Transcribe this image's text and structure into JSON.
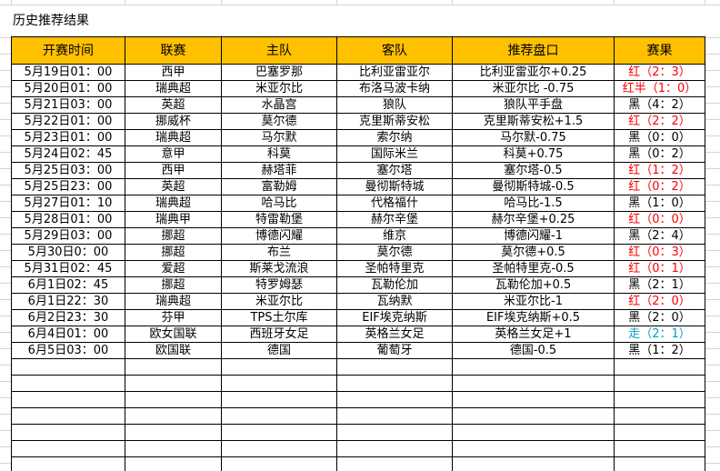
{
  "title": "历史推荐结果",
  "table": {
    "headers": [
      "开赛时间",
      "联赛",
      "主队",
      "客队",
      "推荐盘口",
      "赛果"
    ],
    "header_color": "#ffc000",
    "rows": [
      [
        "5月19日01：00",
        "西甲",
        "巴塞罗那",
        "比利亚雷亚尔",
        "比利亚雷亚尔+0.25",
        "红（2：3）"
      ],
      [
        "5月20日01：00",
        "瑞典超",
        "米亚尔比",
        "布洛马波卡纳",
        "米亚尔比 -0.75",
        "红半（1：0）"
      ],
      [
        "5月21日03：00",
        "英超",
        "水晶宫",
        "狼队",
        "狼队平手盘",
        "黑（4：2）"
      ],
      [
        "5月22日01：00",
        "挪威杯",
        "莫尔德",
        "克里斯蒂安松",
        "克里斯蒂安松+1.5",
        "红（2：2）"
      ],
      [
        "5月23日01：00",
        "瑞典超",
        "马尔默",
        "索尔纳",
        "马尔默-0.75",
        "黑（0：0）"
      ],
      [
        "5月24日02：45",
        "意甲",
        "科莫",
        "国际米兰",
        "科莫+0.75",
        "黑（0：2）"
      ],
      [
        "5月25日03：00",
        "西甲",
        "赫塔菲",
        "塞尔塔",
        "塞尔塔-0.5",
        "红（1：2）"
      ],
      [
        "5月25日23：00",
        "英超",
        "富勒姆",
        "曼彻斯特城",
        "曼彻斯特城-0.5",
        "红（0：2）"
      ],
      [
        "5月27日01：10",
        "瑞典超",
        "哈马比",
        "代格福什",
        "哈马比-1.5",
        "黑（1：0）"
      ],
      [
        "5月28日01：00",
        "瑞典甲",
        "特雷勒堡",
        "赫尔辛堡",
        "赫尔辛堡+0.25",
        "红（0：0）"
      ],
      [
        "5月29日03：00",
        "挪超",
        "博德闪耀",
        "维京",
        "博德闪耀-1",
        "黑（2：4）"
      ],
      [
        "5月30日0：00",
        "挪超",
        "布兰",
        "莫尔德",
        "莫尔德+0.5",
        "红（0：3）"
      ],
      [
        "5月31日02：45",
        "爱超",
        "斯莱戈流浪",
        "圣帕特里克",
        "圣帕特里克-0.5",
        "红（0：1）"
      ],
      [
        "6月1日02：45",
        "挪超",
        "特罗姆瑟",
        "瓦勒伦加",
        "瓦勒伦加+0.5",
        "黑（2：1）"
      ],
      [
        "6月1日22：30",
        "瑞典超",
        "米亚尔比",
        "瓦纳默",
        "米亚尔比-1",
        "红（2：0）"
      ],
      [
        "6月2日23：30",
        "芬甲",
        "TPS土尔库",
        "EIF埃克纳斯",
        "EIF埃克纳斯+0.5",
        "黑（2：0）"
      ],
      [
        "6月4日01：00",
        "欧女国联",
        "西班牙女足",
        "英格兰女足",
        "英格兰女足+1",
        "走（2：1）"
      ],
      [
        "6月5日03：00",
        "欧国联",
        "德国",
        "葡萄牙",
        "德国-0.5",
        "黑（1：2）"
      ]
    ],
    "result_colors": [
      "#ff0000",
      "#ff0000",
      "#000000",
      "#ff0000",
      "#000000",
      "#000000",
      "#ff0000",
      "#ff0000",
      "#000000",
      "#ff0000",
      "#000000",
      "#ff0000",
      "#ff0000",
      "#000000",
      "#ff0000",
      "#000000",
      "#00a0c0",
      "#000000"
    ]
  }
}
